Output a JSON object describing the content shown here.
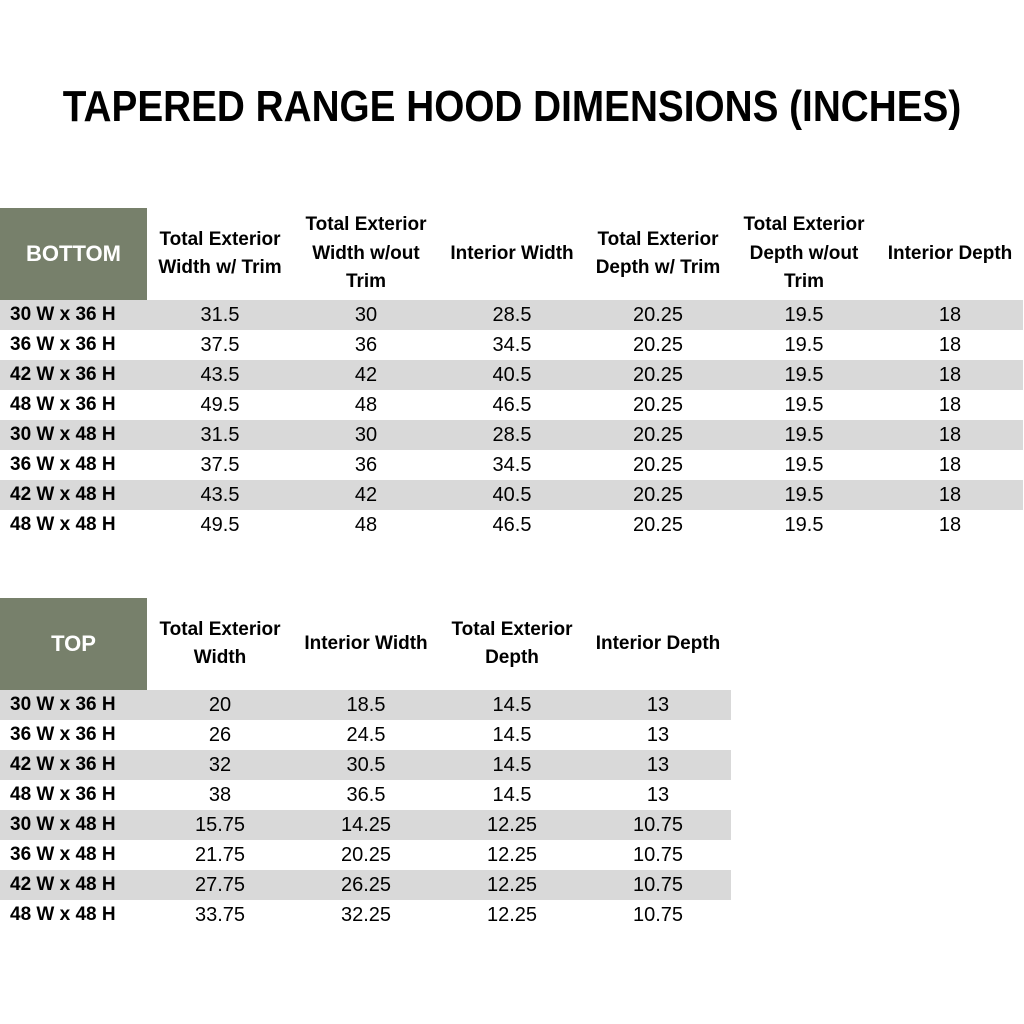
{
  "page": {
    "title": "TAPERED RANGE HOOD DIMENSIONS (INCHES)"
  },
  "colors": {
    "header_green": "#77806b",
    "stripe_gray": "#d9d9d9",
    "header_label_text": "#ffffff",
    "body_text": "#000000"
  },
  "bottom_table": {
    "label": "BOTTOM",
    "columns": [
      "Total Exterior Width w/ Trim",
      "Total Exterior Width w/out Trim",
      "Interior Width",
      "Total Exterior Depth w/ Trim",
      "Total Exterior Depth w/out Trim",
      "Interior Depth"
    ],
    "rows": [
      {
        "size": "30 W x 36 H",
        "values": [
          "31.5",
          "30",
          "28.5",
          "20.25",
          "19.5",
          "18"
        ]
      },
      {
        "size": "36 W x 36 H",
        "values": [
          "37.5",
          "36",
          "34.5",
          "20.25",
          "19.5",
          "18"
        ]
      },
      {
        "size": "42 W x 36 H",
        "values": [
          "43.5",
          "42",
          "40.5",
          "20.25",
          "19.5",
          "18"
        ]
      },
      {
        "size": "48 W x 36 H",
        "values": [
          "49.5",
          "48",
          "46.5",
          "20.25",
          "19.5",
          "18"
        ]
      },
      {
        "size": "30 W x 48 H",
        "values": [
          "31.5",
          "30",
          "28.5",
          "20.25",
          "19.5",
          "18"
        ]
      },
      {
        "size": "36 W x 48 H",
        "values": [
          "37.5",
          "36",
          "34.5",
          "20.25",
          "19.5",
          "18"
        ]
      },
      {
        "size": "42 W x 48 H",
        "values": [
          "43.5",
          "42",
          "40.5",
          "20.25",
          "19.5",
          "18"
        ]
      },
      {
        "size": "48 W x 48 H",
        "values": [
          "49.5",
          "48",
          "46.5",
          "20.25",
          "19.5",
          "18"
        ]
      }
    ]
  },
  "top_table": {
    "label": "TOP",
    "columns": [
      "Total Exterior Width",
      "Interior Width",
      "Total Exterior Depth",
      "Interior Depth"
    ],
    "rows": [
      {
        "size": "30 W x 36 H",
        "values": [
          "20",
          "18.5",
          "14.5",
          "13"
        ]
      },
      {
        "size": "36 W x 36 H",
        "values": [
          "26",
          "24.5",
          "14.5",
          "13"
        ]
      },
      {
        "size": "42 W x 36 H",
        "values": [
          "32",
          "30.5",
          "14.5",
          "13"
        ]
      },
      {
        "size": "48 W x 36 H",
        "values": [
          "38",
          "36.5",
          "14.5",
          "13"
        ]
      },
      {
        "size": "30 W x 48 H",
        "values": [
          "15.75",
          "14.25",
          "12.25",
          "10.75"
        ]
      },
      {
        "size": "36 W x 48 H",
        "values": [
          "21.75",
          "20.25",
          "12.25",
          "10.75"
        ]
      },
      {
        "size": "42 W x 48 H",
        "values": [
          "27.75",
          "26.25",
          "12.25",
          "10.75"
        ]
      },
      {
        "size": "48 W x 48 H",
        "values": [
          "33.75",
          "32.25",
          "12.25",
          "10.75"
        ]
      }
    ]
  }
}
